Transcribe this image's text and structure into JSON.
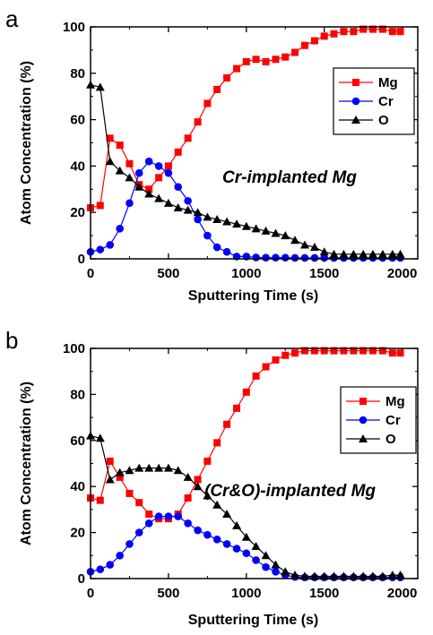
{
  "chart_data": [
    {
      "type": "line",
      "panel_label": "a",
      "annotation": "Cr-implanted Mg",
      "xlabel": "Sputtering Time (s)",
      "ylabel": "Atom Concentration (%)",
      "xlim": [
        0,
        2100
      ],
      "ylim": [
        0,
        100
      ],
      "xticks": [
        "0",
        "500",
        "1000",
        "1500",
        "2000"
      ],
      "yticks": [
        "0",
        "20",
        "40",
        "60",
        "80",
        "100"
      ],
      "legend_position": "top-right",
      "series": [
        {
          "name": "Mg",
          "color": "#ff0000",
          "marker": "square",
          "points": [
            [
              0,
              22
            ],
            [
              62,
              23
            ],
            [
              125,
              52
            ],
            [
              188,
              49
            ],
            [
              250,
              41
            ],
            [
              312,
              32
            ],
            [
              375,
              30
            ],
            [
              438,
              35
            ],
            [
              500,
              40
            ],
            [
              562,
              46
            ],
            [
              625,
              52
            ],
            [
              688,
              59
            ],
            [
              750,
              67
            ],
            [
              812,
              73
            ],
            [
              875,
              78
            ],
            [
              938,
              82
            ],
            [
              1000,
              85
            ],
            [
              1062,
              86
            ],
            [
              1125,
              85
            ],
            [
              1188,
              86
            ],
            [
              1250,
              87
            ],
            [
              1312,
              89
            ],
            [
              1375,
              92
            ],
            [
              1438,
              94
            ],
            [
              1500,
              96
            ],
            [
              1562,
              97
            ],
            [
              1625,
              98
            ],
            [
              1688,
              98
            ],
            [
              1750,
              99
            ],
            [
              1812,
              99
            ],
            [
              1875,
              99
            ],
            [
              1938,
              98
            ],
            [
              1988,
              98
            ]
          ]
        },
        {
          "name": "Cr",
          "color": "#0000ff",
          "marker": "circle",
          "points": [
            [
              0,
              3
            ],
            [
              62,
              4
            ],
            [
              125,
              6
            ],
            [
              188,
              13
            ],
            [
              250,
              24
            ],
            [
              312,
              37
            ],
            [
              375,
              42
            ],
            [
              438,
              40
            ],
            [
              500,
              37
            ],
            [
              562,
              31
            ],
            [
              625,
              25
            ],
            [
              688,
              17
            ],
            [
              750,
              10
            ],
            [
              812,
              5
            ],
            [
              875,
              3
            ],
            [
              938,
              1
            ],
            [
              1000,
              1
            ],
            [
              1062,
              0.6
            ],
            [
              1125,
              0.5
            ],
            [
              1188,
              0.5
            ],
            [
              1250,
              0.5
            ],
            [
              1312,
              0.4
            ],
            [
              1375,
              0.4
            ],
            [
              1438,
              0.4
            ],
            [
              1500,
              0.4
            ],
            [
              1562,
              0.4
            ],
            [
              1625,
              0.4
            ],
            [
              1688,
              0.4
            ],
            [
              1750,
              0.4
            ],
            [
              1812,
              0.4
            ],
            [
              1875,
              0.4
            ],
            [
              1938,
              0.4
            ],
            [
              1988,
              0.4
            ]
          ]
        },
        {
          "name": "O",
          "color": "#000000",
          "marker": "triangle",
          "points": [
            [
              0,
              75
            ],
            [
              62,
              74
            ],
            [
              125,
              42
            ],
            [
              188,
              38
            ],
            [
              250,
              35
            ],
            [
              312,
              31
            ],
            [
              375,
              28
            ],
            [
              438,
              26
            ],
            [
              500,
              24
            ],
            [
              562,
              22
            ],
            [
              625,
              21
            ],
            [
              688,
              20
            ],
            [
              750,
              18
            ],
            [
              812,
              17
            ],
            [
              875,
              16
            ],
            [
              938,
              15
            ],
            [
              1000,
              14
            ],
            [
              1062,
              13
            ],
            [
              1125,
              12
            ],
            [
              1188,
              11
            ],
            [
              1250,
              10
            ],
            [
              1312,
              8
            ],
            [
              1375,
              6
            ],
            [
              1438,
              5
            ],
            [
              1500,
              3
            ],
            [
              1562,
              2
            ],
            [
              1625,
              2
            ],
            [
              1688,
              2
            ],
            [
              1750,
              2
            ],
            [
              1812,
              2
            ],
            [
              1875,
              2
            ],
            [
              1938,
              2
            ],
            [
              1988,
              2
            ]
          ]
        }
      ]
    },
    {
      "type": "line",
      "panel_label": "b",
      "annotation": "(Cr&O)-implanted Mg",
      "xlabel": "Sputtering Time (s)",
      "ylabel": "Atom Concentration (%)",
      "xlim": [
        0,
        2100
      ],
      "ylim": [
        0,
        100
      ],
      "xticks": [
        "0",
        "500",
        "1000",
        "1500",
        "2000"
      ],
      "yticks": [
        "0",
        "20",
        "40",
        "60",
        "80",
        "100"
      ],
      "legend_position": "top-right",
      "series": [
        {
          "name": "Mg",
          "color": "#ff0000",
          "marker": "square",
          "points": [
            [
              0,
              35
            ],
            [
              62,
              34
            ],
            [
              125,
              51
            ],
            [
              188,
              44
            ],
            [
              250,
              37
            ],
            [
              312,
              33
            ],
            [
              375,
              28
            ],
            [
              438,
              26
            ],
            [
              500,
              26
            ],
            [
              562,
              28
            ],
            [
              625,
              35
            ],
            [
              688,
              43
            ],
            [
              750,
              51
            ],
            [
              812,
              59
            ],
            [
              875,
              67
            ],
            [
              938,
              74
            ],
            [
              1000,
              81
            ],
            [
              1062,
              88
            ],
            [
              1125,
              92
            ],
            [
              1188,
              95
            ],
            [
              1250,
              97
            ],
            [
              1312,
              98
            ],
            [
              1375,
              99
            ],
            [
              1438,
              99
            ],
            [
              1500,
              99
            ],
            [
              1562,
              99
            ],
            [
              1625,
              99
            ],
            [
              1688,
              99
            ],
            [
              1750,
              99
            ],
            [
              1812,
              99
            ],
            [
              1875,
              99
            ],
            [
              1938,
              98
            ],
            [
              1988,
              98
            ]
          ]
        },
        {
          "name": "Cr",
          "color": "#0000ff",
          "marker": "circle",
          "points": [
            [
              0,
              3
            ],
            [
              62,
              4
            ],
            [
              125,
              6
            ],
            [
              188,
              10
            ],
            [
              250,
              15
            ],
            [
              312,
              20
            ],
            [
              375,
              24
            ],
            [
              438,
              27
            ],
            [
              500,
              27
            ],
            [
              562,
              27
            ],
            [
              625,
              24
            ],
            [
              688,
              21
            ],
            [
              750,
              19
            ],
            [
              812,
              17
            ],
            [
              875,
              15
            ],
            [
              938,
              13
            ],
            [
              1000,
              11
            ],
            [
              1062,
              8
            ],
            [
              1125,
              5
            ],
            [
              1188,
              3
            ],
            [
              1250,
              1.5
            ],
            [
              1312,
              0.7
            ],
            [
              1375,
              0.5
            ],
            [
              1438,
              0.5
            ],
            [
              1500,
              0.5
            ],
            [
              1562,
              0.5
            ],
            [
              1625,
              0.5
            ],
            [
              1688,
              0.5
            ],
            [
              1750,
              0.5
            ],
            [
              1812,
              0.5
            ],
            [
              1875,
              0.5
            ],
            [
              1938,
              0.5
            ],
            [
              1988,
              0.5
            ]
          ]
        },
        {
          "name": "O",
          "color": "#000000",
          "marker": "triangle",
          "points": [
            [
              0,
              62
            ],
            [
              62,
              61
            ],
            [
              125,
              43
            ],
            [
              188,
              46
            ],
            [
              250,
              47
            ],
            [
              312,
              48
            ],
            [
              375,
              48
            ],
            [
              438,
              48
            ],
            [
              500,
              48
            ],
            [
              562,
              47
            ],
            [
              625,
              44
            ],
            [
              688,
              40
            ],
            [
              750,
              36
            ],
            [
              812,
              32
            ],
            [
              875,
              28
            ],
            [
              938,
              23
            ],
            [
              1000,
              18
            ],
            [
              1062,
              14
            ],
            [
              1125,
              10
            ],
            [
              1188,
              6
            ],
            [
              1250,
              3
            ],
            [
              1312,
              1.5
            ],
            [
              1375,
              1
            ],
            [
              1438,
              1
            ],
            [
              1500,
              1
            ],
            [
              1562,
              1
            ],
            [
              1625,
              1
            ],
            [
              1688,
              1
            ],
            [
              1750,
              1
            ],
            [
              1812,
              1
            ],
            [
              1875,
              1
            ],
            [
              1938,
              1.5
            ],
            [
              1988,
              1.5
            ]
          ]
        }
      ]
    }
  ]
}
